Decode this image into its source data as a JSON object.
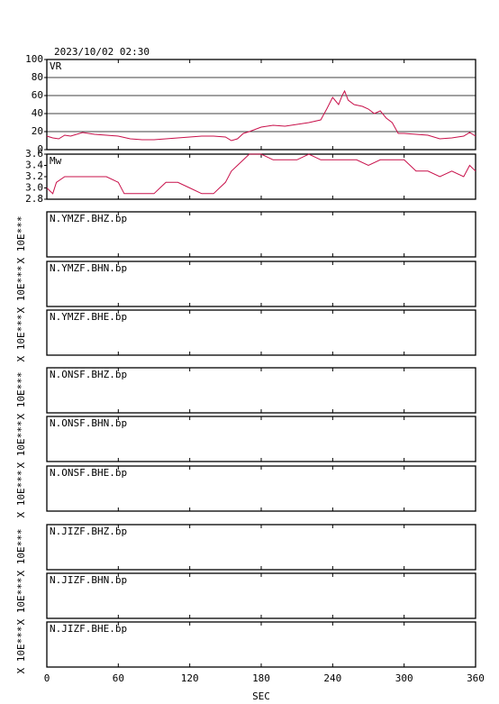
{
  "chart_data": [
    {
      "type": "line",
      "title": "2023/10/02 02:30",
      "label": "VR",
      "color": "#c8104a",
      "grid": true,
      "xlim": [
        0,
        360
      ],
      "ylim": [
        0,
        100
      ],
      "yticks": [
        0,
        20,
        40,
        60,
        80,
        100
      ],
      "x": [
        0,
        5,
        10,
        15,
        20,
        30,
        40,
        50,
        60,
        70,
        80,
        90,
        100,
        110,
        120,
        130,
        140,
        150,
        155,
        160,
        165,
        170,
        180,
        190,
        200,
        210,
        220,
        230,
        235,
        240,
        245,
        248,
        250,
        253,
        258,
        265,
        270,
        275,
        280,
        285,
        290,
        295,
        300,
        310,
        320,
        330,
        340,
        350,
        355,
        360
      ],
      "values": [
        15,
        13,
        12,
        16,
        15,
        19,
        17,
        16,
        15,
        12,
        11,
        11,
        12,
        13,
        14,
        15,
        15,
        14,
        10,
        12,
        18,
        20,
        25,
        27,
        26,
        28,
        30,
        33,
        45,
        58,
        50,
        60,
        65,
        55,
        50,
        48,
        45,
        40,
        43,
        35,
        30,
        18,
        18,
        17,
        16,
        12,
        13,
        15,
        19,
        15
      ]
    },
    {
      "type": "line",
      "label": "Mw",
      "color": "#c8104a",
      "xlim": [
        0,
        360
      ],
      "ylim": [
        2.8,
        3.6
      ],
      "yticks": [
        2.8,
        3.0,
        3.2,
        3.4,
        3.6
      ],
      "x": [
        0,
        5,
        8,
        15,
        20,
        30,
        50,
        60,
        65,
        70,
        90,
        95,
        100,
        110,
        120,
        130,
        140,
        145,
        150,
        155,
        160,
        165,
        170,
        180,
        190,
        200,
        210,
        220,
        230,
        240,
        250,
        260,
        270,
        280,
        290,
        300,
        310,
        320,
        330,
        340,
        350,
        355,
        360
      ],
      "values": [
        3.0,
        2.9,
        3.1,
        3.2,
        3.2,
        3.2,
        3.2,
        3.1,
        2.9,
        2.9,
        2.9,
        3.0,
        3.1,
        3.1,
        3.0,
        2.9,
        2.9,
        3.0,
        3.1,
        3.3,
        3.4,
        3.5,
        3.6,
        3.6,
        3.5,
        3.5,
        3.5,
        3.6,
        3.5,
        3.5,
        3.5,
        3.5,
        3.4,
        3.5,
        3.5,
        3.5,
        3.3,
        3.3,
        3.2,
        3.3,
        3.2,
        3.4,
        3.3
      ]
    },
    {
      "type": "waveform",
      "label": "N.YMZF.BHZ.bp",
      "ylabel": "X 10E***",
      "xlim": [
        0,
        360
      ]
    },
    {
      "type": "waveform",
      "label": "N.YMZF.BHN.bp",
      "ylabel": "X 10E***",
      "xlim": [
        0,
        360
      ]
    },
    {
      "type": "waveform",
      "label": "N.YMZF.BHE.bp",
      "ylabel": "X 10E***",
      "xlim": [
        0,
        360
      ]
    },
    {
      "type": "waveform",
      "label": "N.ONSF.BHZ.bp",
      "ylabel": "X 10E***",
      "xlim": [
        0,
        360
      ]
    },
    {
      "type": "waveform",
      "label": "N.ONSF.BHN.bp",
      "ylabel": "X 10E***",
      "xlim": [
        0,
        360
      ]
    },
    {
      "type": "waveform",
      "label": "N.ONSF.BHE.bp",
      "ylabel": "X 10E***",
      "xlim": [
        0,
        360
      ]
    },
    {
      "type": "waveform",
      "label": "N.JIZF.BHZ.bp",
      "ylabel": "X 10E***",
      "xlim": [
        0,
        360
      ]
    },
    {
      "type": "waveform",
      "label": "N.JIZF.BHN.bp",
      "ylabel": "X 10E***",
      "xlim": [
        0,
        360
      ]
    },
    {
      "type": "waveform",
      "label": "N.JIZF.BHE.bp",
      "ylabel": "X 10E***",
      "xlim": [
        0,
        360
      ],
      "xlabel": "SEC",
      "xticks": [
        0,
        60,
        120,
        180,
        240,
        300,
        360
      ]
    }
  ]
}
